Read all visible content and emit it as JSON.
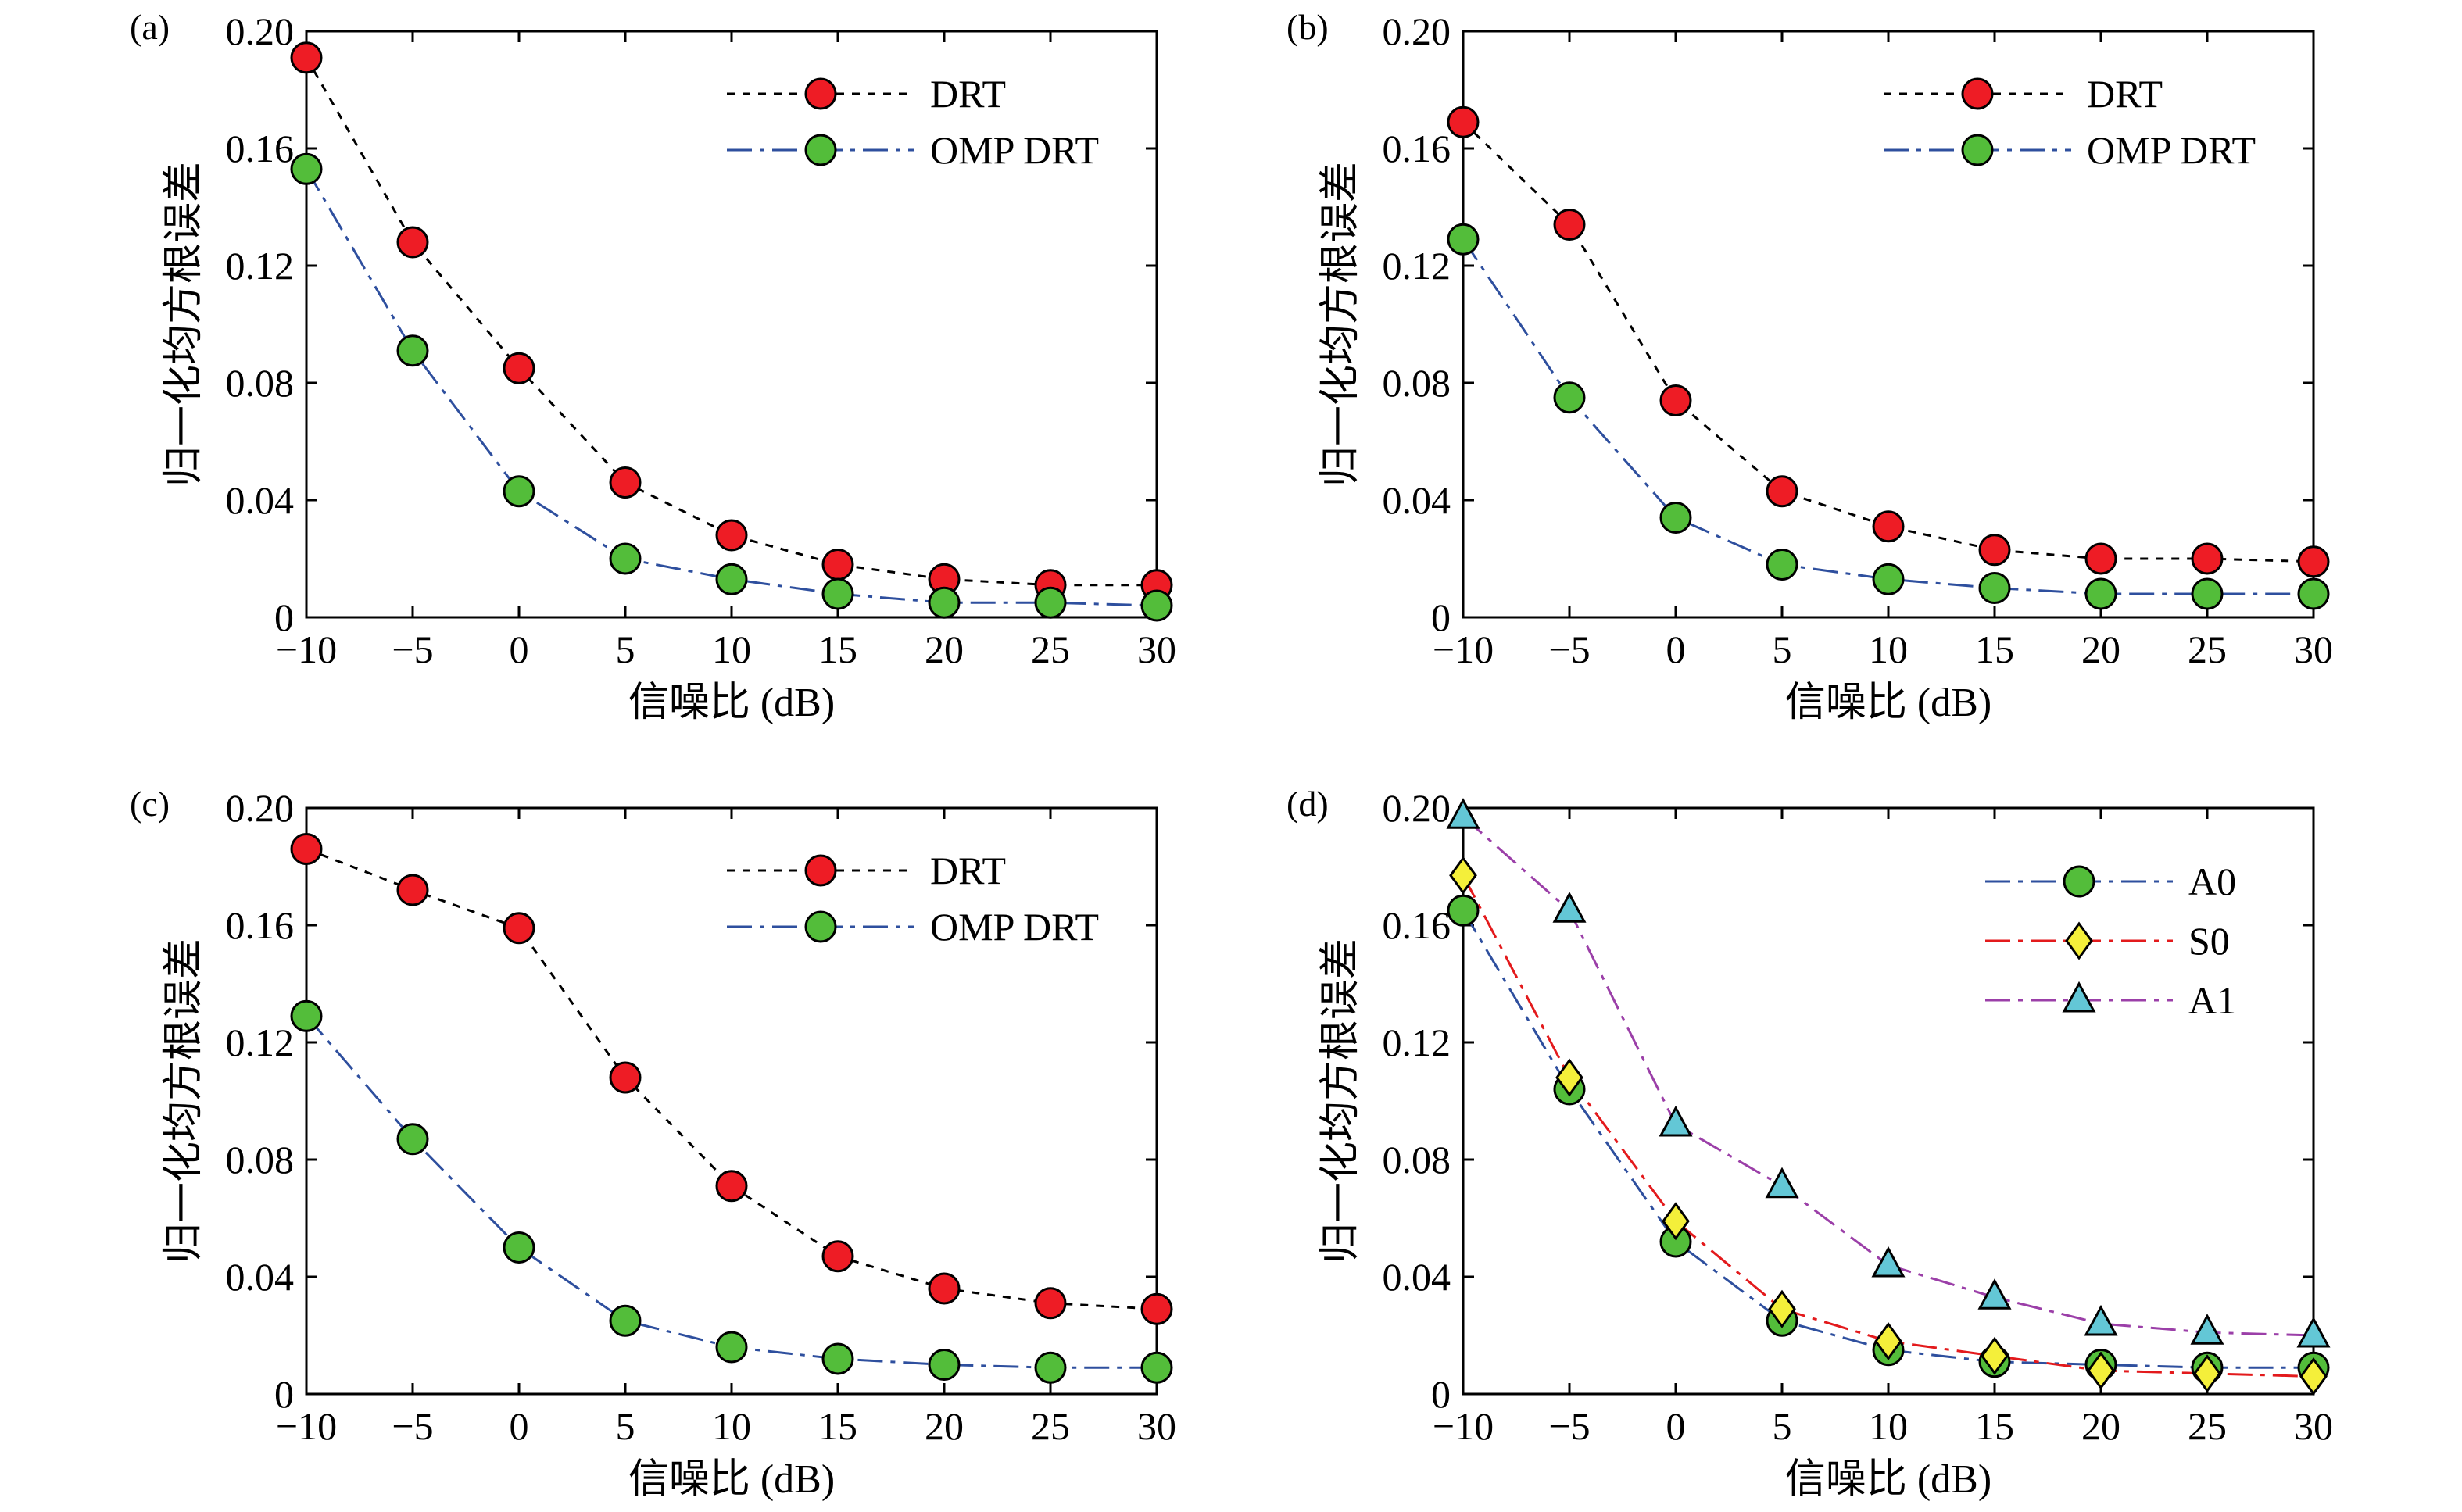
{
  "figure": {
    "background": "#ffffff"
  },
  "series_styles": {
    "DRT": {
      "color": "#000000",
      "dash": "10,10",
      "marker": "circle",
      "fill": "#ee1c25"
    },
    "OMP DRT": {
      "color": "#2e4f9e",
      "dash": "32,10,6,10",
      "marker": "circle",
      "fill": "#53bd3a"
    },
    "A0": {
      "color": "#2e4f9e",
      "dash": "32,10,6,10",
      "marker": "circle",
      "fill": "#53bd3a"
    },
    "S0": {
      "color": "#e31a1c",
      "dash": "32,10,6,10",
      "marker": "diamond",
      "fill": "#f4ef3a"
    },
    "A1": {
      "color": "#9b3fa8",
      "dash": "32,10,6,10",
      "marker": "triangle",
      "fill": "#63c7d6"
    }
  },
  "chart_data": [
    {
      "panel": "(a)",
      "type": "line",
      "xlabel": "信噪比 (dB)",
      "ylabel": "归一化均方根误差",
      "xlim": [
        -10,
        30
      ],
      "ylim": [
        0,
        0.2
      ],
      "xticks": [
        -10,
        -5,
        0,
        5,
        10,
        15,
        20,
        25,
        30
      ],
      "xtick_labels": [
        "−10",
        "−5",
        "0",
        "5",
        "10",
        "15",
        "20",
        "25",
        "30"
      ],
      "yticks": [
        0,
        0.04,
        0.08,
        0.12,
        0.16,
        0.2
      ],
      "ytick_labels": [
        "0",
        "0.04",
        "0.08",
        "0.12",
        "0.16",
        "0.20"
      ],
      "legend_position": "top-right",
      "grid": false,
      "x": [
        -10,
        -5,
        0,
        5,
        10,
        15,
        20,
        25,
        30
      ],
      "series": [
        {
          "name": "DRT",
          "values": [
            0.191,
            0.128,
            0.085,
            0.046,
            0.028,
            0.018,
            0.013,
            0.011,
            0.011
          ]
        },
        {
          "name": "OMP DRT",
          "values": [
            0.153,
            0.091,
            0.043,
            0.02,
            0.013,
            0.008,
            0.005,
            0.005,
            0.004
          ]
        }
      ]
    },
    {
      "panel": "(b)",
      "type": "line",
      "xlabel": "信噪比 (dB)",
      "ylabel": "归一化均方根误差",
      "xlim": [
        -10,
        30
      ],
      "ylim": [
        0,
        0.2
      ],
      "xticks": [
        -10,
        -5,
        0,
        5,
        10,
        15,
        20,
        25,
        30
      ],
      "xtick_labels": [
        "−10",
        "−5",
        "0",
        "5",
        "10",
        "15",
        "20",
        "25",
        "30"
      ],
      "yticks": [
        0,
        0.04,
        0.08,
        0.12,
        0.16,
        0.2
      ],
      "ytick_labels": [
        "0",
        "0.04",
        "0.08",
        "0.12",
        "0.16",
        "0.20"
      ],
      "legend_position": "top-right",
      "grid": false,
      "x": [
        -10,
        -5,
        0,
        5,
        10,
        15,
        20,
        25,
        30
      ],
      "series": [
        {
          "name": "DRT",
          "values": [
            0.169,
            0.134,
            0.074,
            0.043,
            0.031,
            0.023,
            0.02,
            0.02,
            0.019
          ]
        },
        {
          "name": "OMP DRT",
          "values": [
            0.129,
            0.075,
            0.034,
            0.018,
            0.013,
            0.01,
            0.008,
            0.008,
            0.008
          ]
        }
      ]
    },
    {
      "panel": "(c)",
      "type": "line",
      "xlabel": "信噪比 (dB)",
      "ylabel": "归一化均方根误差",
      "xlim": [
        -10,
        30
      ],
      "ylim": [
        0,
        0.2
      ],
      "xticks": [
        -10,
        -5,
        0,
        5,
        10,
        15,
        20,
        25,
        30
      ],
      "xtick_labels": [
        "−10",
        "−5",
        "0",
        "5",
        "10",
        "15",
        "20",
        "25",
        "30"
      ],
      "yticks": [
        0,
        0.04,
        0.08,
        0.12,
        0.16,
        0.2
      ],
      "ytick_labels": [
        "0",
        "0.04",
        "0.08",
        "0.12",
        "0.16",
        "0.20"
      ],
      "legend_position": "top-right",
      "grid": false,
      "x": [
        -10,
        -5,
        0,
        5,
        10,
        15,
        20,
        25,
        30
      ],
      "series": [
        {
          "name": "DRT",
          "values": [
            0.186,
            0.172,
            0.159,
            0.108,
            0.071,
            0.047,
            0.036,
            0.031,
            0.029
          ]
        },
        {
          "name": "OMP DRT",
          "values": [
            0.129,
            0.087,
            0.05,
            0.025,
            0.016,
            0.012,
            0.01,
            0.009,
            0.009
          ]
        }
      ]
    },
    {
      "panel": "(d)",
      "type": "line",
      "xlabel": "信噪比 (dB)",
      "ylabel": "归一化均方根误差",
      "xlim": [
        -10,
        30
      ],
      "ylim": [
        0,
        0.2
      ],
      "xticks": [
        -10,
        -5,
        0,
        5,
        10,
        15,
        20,
        25,
        30
      ],
      "xtick_labels": [
        "−10",
        "−5",
        "0",
        "5",
        "10",
        "15",
        "20",
        "25",
        "30"
      ],
      "yticks": [
        0,
        0.04,
        0.08,
        0.12,
        0.16,
        0.2
      ],
      "ytick_labels": [
        "0",
        "0.04",
        "0.08",
        "0.12",
        "0.16",
        "0.20"
      ],
      "legend_position": "top-right",
      "grid": false,
      "x": [
        -10,
        -5,
        0,
        5,
        10,
        15,
        20,
        25,
        30
      ],
      "series": [
        {
          "name": "A0",
          "values": [
            0.165,
            0.104,
            0.052,
            0.025,
            0.015,
            0.011,
            0.01,
            0.009,
            0.009
          ]
        },
        {
          "name": "S0",
          "values": [
            0.177,
            0.108,
            0.059,
            0.029,
            0.018,
            0.013,
            0.008,
            0.007,
            0.006
          ]
        },
        {
          "name": "A1",
          "values": [
            0.197,
            0.165,
            0.092,
            0.071,
            0.044,
            0.033,
            0.024,
            0.021,
            0.02
          ]
        }
      ]
    }
  ]
}
